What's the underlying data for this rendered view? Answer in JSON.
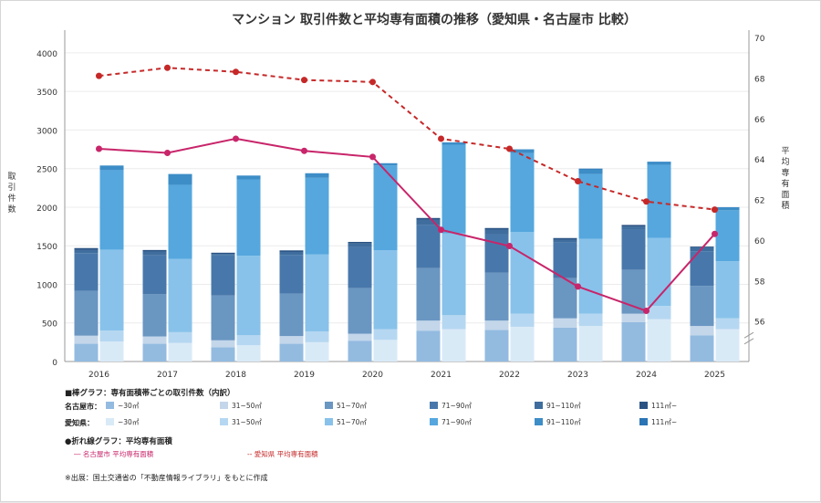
{
  "chart_data": {
    "type": "bar",
    "title": "マンション 取引件数と平均専有面積の推移（愛知県・名古屋市 比較）",
    "ylabel_left": "取引件数",
    "ylabel_right": "平均専有面積",
    "categories": [
      "2016",
      "2017",
      "2018",
      "2019",
      "2020",
      "2021",
      "2022",
      "2023",
      "2024",
      "2025"
    ],
    "y_left_ticks": [
      0,
      500,
      1000,
      1500,
      2000,
      2500,
      3000,
      3500,
      4000
    ],
    "y_left_range": [
      0,
      4200
    ],
    "y_right_ticks": [
      56,
      58,
      60,
      62,
      64,
      66,
      68,
      70
    ],
    "y_right_range": [
      54,
      70
    ],
    "grid": true,
    "segment_labels": [
      "~30㎡",
      "31~50㎡",
      "51~70㎡",
      "71~90㎡",
      "91~110㎡",
      "111㎡~"
    ],
    "bars": {
      "nagoya": {
        "name": "名古屋市",
        "colors": [
          "#93bbe0",
          "#c3d6ea",
          "#6a96c2",
          "#4878ab",
          "#3f6e9e",
          "#2a5384"
        ],
        "stacks": [
          [
            230,
            105,
            580,
            490,
            40,
            25
          ],
          [
            230,
            95,
            550,
            500,
            50,
            20
          ],
          [
            185,
            90,
            580,
            520,
            20,
            15
          ],
          [
            230,
            100,
            550,
            500,
            40,
            20
          ],
          [
            270,
            90,
            590,
            530,
            50,
            20
          ],
          [
            400,
            130,
            680,
            560,
            70,
            20
          ],
          [
            410,
            120,
            620,
            500,
            60,
            20
          ],
          [
            440,
            120,
            520,
            460,
            40,
            20
          ],
          [
            510,
            110,
            570,
            520,
            40,
            20
          ],
          [
            340,
            120,
            520,
            450,
            50,
            10
          ]
        ]
      },
      "aichi": {
        "name": "愛知県",
        "colors": [
          "#d9eaf7",
          "#b6d7f1",
          "#88c2ea",
          "#55a7de",
          "#3d8dc7",
          "#2a74b5"
        ],
        "stacks": [
          [
            260,
            140,
            1050,
            1030,
            60,
            0
          ],
          [
            240,
            140,
            950,
            960,
            140,
            0
          ],
          [
            210,
            130,
            1030,
            990,
            50,
            0
          ],
          [
            250,
            140,
            1000,
            990,
            60,
            0
          ],
          [
            280,
            140,
            1020,
            1100,
            30,
            0
          ],
          [
            420,
            180,
            1060,
            1150,
            30,
            0
          ],
          [
            450,
            170,
            1060,
            1020,
            50,
            0
          ],
          [
            460,
            160,
            970,
            840,
            60,
            10
          ],
          [
            550,
            170,
            880,
            950,
            40,
            0
          ],
          [
            420,
            140,
            740,
            660,
            40,
            0
          ]
        ]
      }
    },
    "lines": [
      {
        "name": "名古屋市 平均専有面積",
        "color": "#c8256a",
        "style": "solid",
        "values": [
          64.5,
          64.3,
          65.0,
          64.4,
          64.1,
          60.5,
          59.7,
          57.7,
          56.5,
          60.3
        ]
      },
      {
        "name": "愛知県 平均専有面積",
        "color": "#c62828",
        "style": "dashed",
        "values": [
          68.1,
          68.5,
          68.3,
          67.9,
          67.8,
          65.0,
          64.5,
          62.9,
          61.9,
          61.5
        ]
      }
    ],
    "legend": {
      "bar_heading": "■棒グラフ：専有面積帯ごとの取引件数（内訳）",
      "nagoya_label": "名古屋市：",
      "aichi_label": "愛知県：",
      "line_heading": "●折れ線グラフ：平均専有面積",
      "line_nagoya": "― 名古屋市 平均専有面積",
      "line_aichi": "-- 愛知県 平均専有面積"
    },
    "source_note": "※出展：国土交通省の「不動産情報ライブラリ」をもとに作成"
  }
}
